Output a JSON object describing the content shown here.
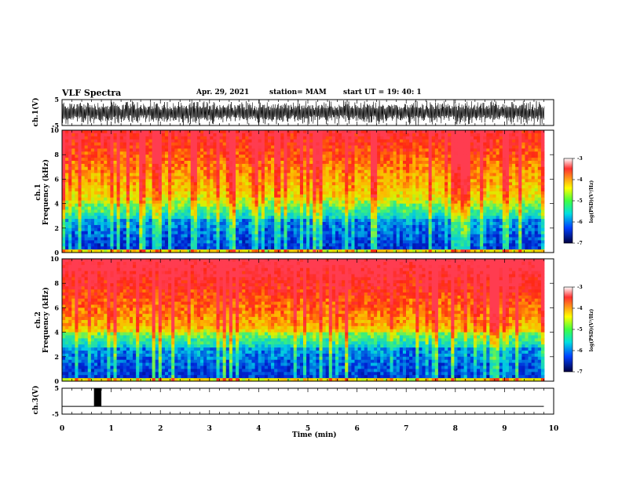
{
  "header": {
    "title": "VLF Spectra",
    "date": "Apr. 29, 2021",
    "station": "station= MAM",
    "start": "start  UT  =    19: 40: 1"
  },
  "chart_data": [
    {
      "type": "line",
      "panel": "ch1-waveform",
      "ylabel": "ch.1(V)",
      "ylim": [
        -5,
        5
      ],
      "yticks": [
        "5",
        "-5"
      ],
      "xlim": [
        0,
        10
      ],
      "description_values": "dense noise trace spanning full range"
    },
    {
      "type": "heatmap",
      "panel": "ch1-spectrogram",
      "ylabel_line1": "ch.1",
      "ylabel_line2": "Frequency (kHz)",
      "ylim": [
        0,
        10
      ],
      "yticks": [
        "0",
        "2",
        "4",
        "6",
        "8",
        "10"
      ],
      "xlim": [
        0,
        10
      ],
      "colorbar": {
        "label": "log(PSD)(V²/Hz)",
        "range": [
          -7,
          -3
        ],
        "ticks": [
          "-3",
          "-4",
          "-5",
          "-6",
          "-7"
        ]
      }
    },
    {
      "type": "heatmap",
      "panel": "ch2-spectrogram",
      "ylabel_line1": "ch.2",
      "ylabel_line2": "Frequency (kHz)",
      "ylim": [
        0,
        10
      ],
      "yticks": [
        "0",
        "2",
        "4",
        "6",
        "8",
        "10"
      ],
      "xlim": [
        0,
        10
      ],
      "colorbar": {
        "label": "log(PSD)(V²/Hz)",
        "range": [
          -7,
          -3
        ],
        "ticks": [
          "-3",
          "-4",
          "-5",
          "-6",
          "-7"
        ]
      }
    },
    {
      "type": "line",
      "panel": "ch3-waveform",
      "ylabel": "ch.3(V)",
      "ylim": [
        -5,
        5
      ],
      "yticks": [
        "5",
        "-5"
      ],
      "xlim": [
        0,
        10
      ],
      "baseline": -2,
      "pulse": {
        "x_start": 0.65,
        "x_end": 0.8,
        "y": 5
      }
    }
  ],
  "xaxis": {
    "label": "Time (min)",
    "ticks": [
      "0",
      "1",
      "2",
      "3",
      "4",
      "5",
      "6",
      "7",
      "8",
      "9",
      "10"
    ]
  },
  "colors": {
    "spectro_low": "#00008b",
    "spectro_mid": "#00e0e0",
    "spectro_green": "#40ff40",
    "spectro_yellow": "#ffff00",
    "spectro_high": "#ff2000"
  }
}
